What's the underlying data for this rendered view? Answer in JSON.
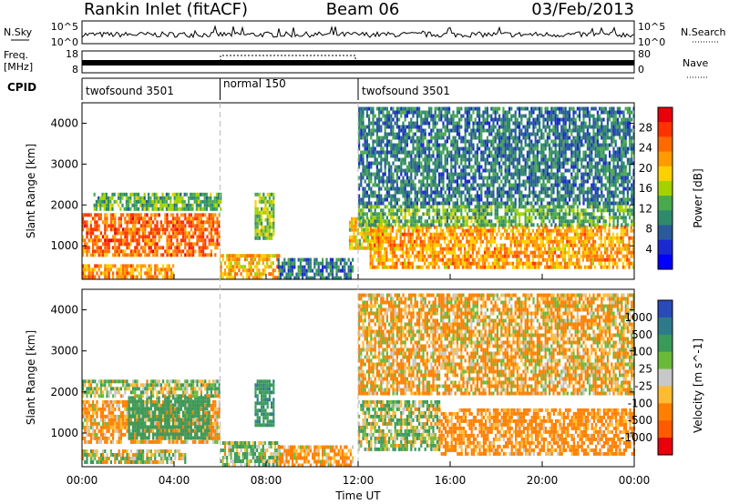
{
  "header": {
    "station": "Rankin Inlet (fitACF)",
    "beam": "Beam 06",
    "date": "03/Feb/2013"
  },
  "sky_panel": {
    "left_label": "N.Sky",
    "right_label": "N.Search",
    "left_ticks": [
      "10^5",
      "10^0"
    ],
    "right_ticks": [
      "10^5",
      "10^0"
    ]
  },
  "freq_panel": {
    "left_label_1": "Freq.",
    "left_label_2": "[MHz]",
    "right_label": "Nave",
    "left_ticks": [
      "18",
      "8"
    ],
    "right_ticks": [
      "80",
      "0"
    ]
  },
  "cpid_panel": {
    "label": "CPID",
    "modes": [
      {
        "name": "twofsound 3501",
        "start_hr": 0,
        "end_hr": 6
      },
      {
        "name": "normal 150",
        "start_hr": 6,
        "end_hr": 12
      },
      {
        "name": "twofsound 3501",
        "start_hr": 12,
        "end_hr": 24
      }
    ]
  },
  "x_axis": {
    "label": "Time UT",
    "ticks": [
      "00:00",
      "04:00",
      "08:00",
      "12:00",
      "16:00",
      "20:00",
      "00:00"
    ]
  },
  "chart_data": [
    {
      "type": "heatmap",
      "name": "power",
      "xlabel": "Time UT",
      "ylabel": "Slant Range [km]",
      "xlim_hr": [
        0,
        24
      ],
      "ylim": [
        180,
        4500
      ],
      "y_ticks": [
        1000,
        2000,
        3000,
        4000
      ],
      "colorbar": {
        "label": "Power [dB]",
        "ticks": [
          "28",
          "24",
          "20",
          "16",
          "12",
          "8",
          "4"
        ],
        "colors": [
          "#e8000a",
          "#ff3300",
          "#ff6a00",
          "#ff9a00",
          "#ffd000",
          "#a6d100",
          "#4aa84f",
          "#2e8a6a",
          "#2a5a9a",
          "#1a2ad0",
          "#0000ff"
        ]
      },
      "regions": [
        {
          "t0": 0.0,
          "t1": 6.0,
          "r0": 800,
          "r1": 1800,
          "level": 24
        },
        {
          "t0": 0.5,
          "t1": 6.0,
          "r0": 1900,
          "r1": 2300,
          "level": 12
        },
        {
          "t0": 0.0,
          "t1": 4.0,
          "r0": 250,
          "r1": 550,
          "level": 22
        },
        {
          "t0": 6.0,
          "t1": 8.6,
          "r0": 250,
          "r1": 800,
          "level": 20
        },
        {
          "t0": 7.5,
          "t1": 8.3,
          "r0": 1200,
          "r1": 2300,
          "level": 14
        },
        {
          "t0": 8.5,
          "t1": 11.8,
          "r0": 250,
          "r1": 700,
          "level": 8
        },
        {
          "t0": 11.6,
          "t1": 13.0,
          "r0": 900,
          "r1": 1700,
          "level": 18
        },
        {
          "t0": 12.5,
          "t1": 24.0,
          "r0": 500,
          "r1": 1500,
          "level": 21
        },
        {
          "t0": 12.0,
          "t1": 24.0,
          "r0": 1500,
          "r1": 2000,
          "level": 12
        },
        {
          "t0": 12.0,
          "t1": 24.0,
          "r0": 2000,
          "r1": 4400,
          "level": 8
        }
      ]
    },
    {
      "type": "heatmap",
      "name": "velocity",
      "xlabel": "Time UT",
      "ylabel": "Slant Range [km]",
      "xlim_hr": [
        0,
        24
      ],
      "ylim": [
        180,
        4500
      ],
      "y_ticks": [
        1000,
        2000,
        3000,
        4000
      ],
      "colorbar": {
        "label": "Velocity [m s^-1]",
        "ticks": [
          "1000",
          "500",
          "100",
          "25",
          "-25",
          "-100",
          "-500",
          "-1000"
        ],
        "colors": [
          "#2a4ab8",
          "#2e7a8a",
          "#3a9a5a",
          "#6aba3a",
          "#c8c8c8",
          "#ffbb33",
          "#ff8000",
          "#ff5a00",
          "#e8000a"
        ]
      },
      "regions": [
        {
          "t0": 0.0,
          "t1": 6.0,
          "r0": 800,
          "r1": 1800,
          "level": -150
        },
        {
          "t0": 2.0,
          "t1": 5.5,
          "r0": 900,
          "r1": 1900,
          "level": 300
        },
        {
          "t0": 0.0,
          "t1": 6.0,
          "r0": 1900,
          "r1": 2300,
          "level": 60
        },
        {
          "t0": 0.0,
          "t1": 4.5,
          "r0": 250,
          "r1": 600,
          "level": 10
        },
        {
          "t0": 6.0,
          "t1": 8.6,
          "r0": 250,
          "r1": 800,
          "level": 80
        },
        {
          "t0": 7.5,
          "t1": 8.3,
          "r0": 1200,
          "r1": 2300,
          "level": 400
        },
        {
          "t0": 8.5,
          "t1": 11.8,
          "r0": 250,
          "r1": 700,
          "level": -150
        },
        {
          "t0": 12.0,
          "t1": 15.5,
          "r0": 600,
          "r1": 1800,
          "level": 60
        },
        {
          "t0": 15.5,
          "t1": 24.0,
          "r0": 500,
          "r1": 1600,
          "level": -200
        },
        {
          "t0": 12.0,
          "t1": 24.0,
          "r0": 2000,
          "r1": 4400,
          "level": -100
        }
      ]
    }
  ]
}
